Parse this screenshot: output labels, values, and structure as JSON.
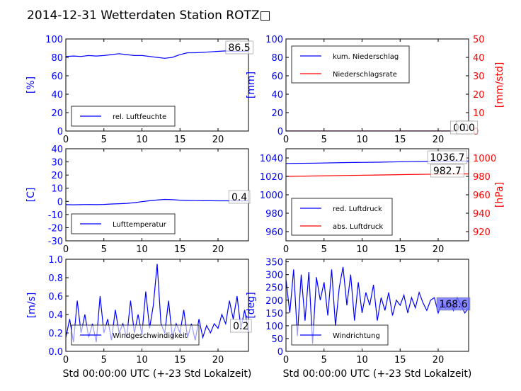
{
  "figure": {
    "title": "2014-12-31 Wetterdaten Station ROTZ□",
    "xlabel": "Std 00:00:00 UTC (+-23 Std Lokalzeit)",
    "colors": {
      "blue": "#0000ff",
      "red": "#ff0000",
      "black": "#000000"
    }
  },
  "chart_data": [
    {
      "id": "humidity",
      "type": "line",
      "ylabel": "[%]",
      "ylim": [
        0,
        100
      ],
      "xlim": [
        0,
        24
      ],
      "yticks": [
        0,
        20,
        40,
        60,
        80,
        100
      ],
      "xticks": [
        0,
        5,
        10,
        15,
        20
      ],
      "legend": "lower-left",
      "grid": false,
      "series": [
        {
          "name": "rel. Luftfeuchte",
          "color": "#0000ff",
          "x": [
            0,
            1,
            2,
            3,
            4,
            5,
            6,
            7,
            8,
            9,
            10,
            11,
            12,
            13,
            14,
            15,
            16,
            17,
            18,
            19,
            20,
            21,
            22,
            23,
            24
          ],
          "y": [
            81,
            81.5,
            81,
            82,
            81.5,
            82,
            83,
            84,
            83,
            82,
            82,
            81,
            80,
            79,
            80,
            83,
            85,
            85,
            85.5,
            86,
            86.5,
            87,
            86.5,
            86.5,
            86.5
          ]
        }
      ],
      "annotations": [
        {
          "text": "86.5",
          "x": 22.8
        }
      ]
    },
    {
      "id": "precip",
      "type": "line",
      "ylabel": "[mm]",
      "ylabel2": "[mm/std]",
      "ylim": [
        0,
        100
      ],
      "ylim2": [
        0,
        50
      ],
      "xlim": [
        0,
        24
      ],
      "yticks": [
        0,
        20,
        40,
        60,
        80,
        100
      ],
      "yticks2": [
        0,
        10,
        20,
        30,
        40,
        50
      ],
      "xticks": [
        0,
        5,
        10,
        15,
        20
      ],
      "legend": "upper-left",
      "grid": false,
      "series": [
        {
          "name": "kum. Niederschlag",
          "color": "#0000ff",
          "x": [
            0,
            24
          ],
          "y": [
            0,
            0
          ]
        },
        {
          "name": "Niederschlagsrate",
          "color": "#ff0000",
          "x": [
            0,
            24
          ],
          "y": [
            0,
            0
          ]
        }
      ],
      "annotations": [
        {
          "text": "0.0",
          "x": 23
        },
        {
          "text": "0.0",
          "x": 23.8
        }
      ]
    },
    {
      "id": "temperature",
      "type": "line",
      "ylabel": "[C]",
      "ylim": [
        -30,
        40
      ],
      "xlim": [
        0,
        24
      ],
      "yticks": [
        -30,
        -20,
        -10,
        0,
        10,
        20,
        30,
        40
      ],
      "xticks": [
        0,
        5,
        10,
        15,
        20
      ],
      "legend": "lower-left",
      "grid": false,
      "series": [
        {
          "name": "Lufttemperatur",
          "color": "#0000ff",
          "x": [
            0,
            1,
            2,
            3,
            4,
            5,
            6,
            7,
            8,
            9,
            10,
            11,
            12,
            13,
            14,
            15,
            16,
            17,
            18,
            19,
            20,
            21,
            22,
            23,
            24
          ],
          "y": [
            -2.5,
            -2.6,
            -2.5,
            -2.4,
            -2.5,
            -2.3,
            -2,
            -1.8,
            -1.5,
            -1,
            -0.2,
            0.5,
            1,
            1.5,
            1.3,
            0.9,
            0.7,
            0.6,
            0.5,
            0.5,
            0.4,
            0.4,
            0.4,
            0.4,
            0.4
          ]
        }
      ],
      "annotations": [
        {
          "text": "0.4",
          "x": 22.8
        }
      ]
    },
    {
      "id": "pressure",
      "type": "line",
      "ylabel2": "[hPa]",
      "ylim": [
        950,
        1050
      ],
      "ylim2": [
        910,
        1010
      ],
      "xlim": [
        0,
        24
      ],
      "yticks": [
        960,
        980,
        1000,
        1020,
        1040
      ],
      "yticks2": [
        920,
        940,
        960,
        980,
        1000
      ],
      "xticks": [
        0,
        5,
        10,
        15,
        20
      ],
      "legend": "lower-left",
      "grid": false,
      "series": [
        {
          "name": "red. Luftdruck",
          "color": "#0000ff",
          "x": [
            0,
            4,
            8,
            12,
            16,
            20,
            24
          ],
          "y": [
            1034,
            1034.4,
            1035,
            1035.4,
            1036,
            1036.5,
            1036.7
          ]
        },
        {
          "name": "abs. Luftdruck",
          "color": "#ff0000",
          "x": [
            0,
            4,
            8,
            12,
            16,
            20,
            24
          ],
          "y": [
            980,
            980.5,
            981,
            981.5,
            982,
            982.5,
            982.7
          ]
        }
      ],
      "annotations": [
        {
          "text": "1036.7",
          "x": 21.2
        },
        {
          "text": "982.7",
          "x": 21.2
        }
      ]
    },
    {
      "id": "windspeed",
      "type": "line",
      "ylabel": "[m/s]",
      "ylim": [
        0,
        1
      ],
      "xlim": [
        0,
        24
      ],
      "yticks": [
        0,
        0.2,
        0.4,
        0.6,
        0.8,
        1.0
      ],
      "ytick_labels": [
        "0.0",
        "0.2",
        "0.4",
        "0.6",
        "0.8",
        "1.0"
      ],
      "xticks": [
        0,
        5,
        10,
        15,
        20
      ],
      "legend": "lower-left",
      "grid": false,
      "series": [
        {
          "name": "Windgeschwindigkeit",
          "color": "#0000ff",
          "x": [
            0,
            0.5,
            1,
            1.5,
            2,
            2.5,
            3,
            3.5,
            4,
            4.5,
            5,
            5.5,
            6,
            6.5,
            7,
            7.5,
            8,
            8.5,
            9,
            9.5,
            10,
            10.5,
            11,
            11.5,
            12,
            12.5,
            13,
            13.5,
            14,
            14.5,
            15,
            15.5,
            16,
            16.5,
            17,
            17.5,
            18,
            18.5,
            19,
            19.5,
            20,
            20.5,
            21,
            21.5,
            22,
            22.5,
            23,
            23.5,
            24
          ],
          "y": [
            0.15,
            0.35,
            0.1,
            0.55,
            0.2,
            0.4,
            0.15,
            0.3,
            0.1,
            0.6,
            0.2,
            0.35,
            0.12,
            0.45,
            0.2,
            0.3,
            0.15,
            0.55,
            0.2,
            0.4,
            0.18,
            0.65,
            0.25,
            0.5,
            0.95,
            0.3,
            0.2,
            0.55,
            0.15,
            0.3,
            0.2,
            0.45,
            0.15,
            0.3,
            0.12,
            0.35,
            0.15,
            0.28,
            0.2,
            0.3,
            0.25,
            0.4,
            0.3,
            0.55,
            0.35,
            0.6,
            0.25,
            0.45,
            0.2
          ]
        }
      ],
      "annotations": [
        {
          "text": "0.2",
          "x": 23
        }
      ]
    },
    {
      "id": "winddir",
      "type": "line",
      "ylabel": "[deg]",
      "ylim": [
        0,
        360
      ],
      "xlim": [
        0,
        24
      ],
      "yticks": [
        0,
        50,
        100,
        150,
        200,
        250,
        300,
        350
      ],
      "xticks": [
        0,
        5,
        10,
        15,
        20
      ],
      "legend": "lower-left",
      "grid": false,
      "series": [
        {
          "name": "Windrichtung",
          "color": "#0000ff",
          "x": [
            0,
            0.5,
            1,
            1.5,
            2,
            2.5,
            3,
            3.5,
            4,
            4.5,
            5,
            5.5,
            6,
            6.5,
            7,
            7.5,
            8,
            8.5,
            9,
            9.5,
            10,
            10.5,
            11,
            11.5,
            12,
            12.5,
            13,
            13.5,
            14,
            14.5,
            15,
            15.5,
            16,
            16.5,
            17,
            17.5,
            18,
            18.5,
            19,
            19.5,
            20,
            20.5,
            21,
            21.5,
            22,
            22.5,
            23,
            23.5,
            24
          ],
          "y": [
            280,
            150,
            320,
            60,
            300,
            120,
            310,
            30,
            290,
            200,
            270,
            140,
            320,
            100,
            250,
            330,
            180,
            300,
            120,
            270,
            150,
            230,
            180,
            260,
            120,
            210,
            160,
            230,
            140,
            200,
            180,
            220,
            150,
            210,
            170,
            230,
            190,
            160,
            200,
            210,
            150,
            190,
            170,
            200,
            160,
            210,
            180,
            150,
            170
          ]
        }
      ],
      "annotations": [
        {
          "text": "168.6",
          "x": 22
        }
      ]
    }
  ]
}
